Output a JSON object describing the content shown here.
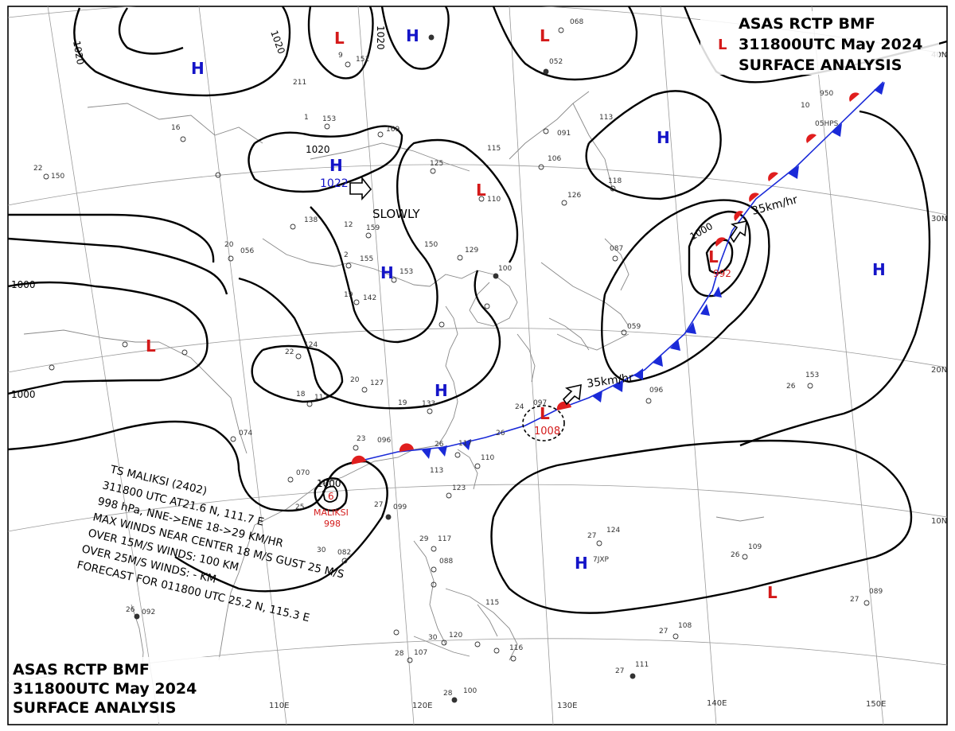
{
  "header_top": {
    "line1": "ASAS RCTP BMF",
    "line2": "311800UTC May 2024",
    "line3": "SURFACE ANALYSIS"
  },
  "header_bottom": {
    "line1": "ASAS RCTP BMF",
    "line2": "311800UTC May 2024",
    "line3": "SURFACE ANALYSIS"
  },
  "latitude_labels": [
    "40N",
    "30N",
    "20N",
    "10N"
  ],
  "longitude_labels": [
    "110E",
    "120E",
    "130E",
    "140E",
    "150E"
  ],
  "isobar_labels": {
    "north_left": "1020",
    "north_mid_a": "1020",
    "north_mid_b": "1020",
    "around_high": "1020",
    "west": "1000",
    "southwest": "1000",
    "japan_low": "1000",
    "malaksi": "1000"
  },
  "pressure_systems": {
    "highs": [
      {
        "id": "h-mongolia"
      },
      {
        "id": "h-north"
      },
      {
        "id": "h-1022",
        "value": "1022"
      },
      {
        "id": "h-yellowsea"
      },
      {
        "id": "h-eastchina"
      },
      {
        "id": "h-northeast"
      },
      {
        "id": "h-pacific-east"
      },
      {
        "id": "h-pacific"
      }
    ],
    "lows": [
      {
        "id": "l-north"
      },
      {
        "id": "l-northeast"
      },
      {
        "id": "l-central"
      },
      {
        "id": "l-west"
      },
      {
        "id": "l-japan",
        "value": "992"
      },
      {
        "id": "l-okinawa",
        "value": "1008"
      },
      {
        "id": "l-pacific"
      }
    ],
    "l_tag": "L"
  },
  "motion": {
    "slowly": "SLOWLY",
    "speed_japan": "35km/hr",
    "speed_okinawa": "35km/hr"
  },
  "typhoon": {
    "name_label": "MALIKSI",
    "pressure": "998",
    "bulletin": [
      "TS MALIKSI (2402)",
      "311800 UTC AT21.6 N, 111.7 E",
      "998 hPa, NNE->ENE 18->29 KM/HR",
      "MAX WINDS NEAR CENTER 18 M/S GUST 25 M/S",
      "OVER 15M/S WINDS: 100 KM",
      "OVER 25M/S WINDS: - KM",
      "FORECAST FOR 011800 UTC 25.2 N, 115.3 E"
    ]
  },
  "colors": {
    "high": "#1414c8",
    "low": "#d41a1a",
    "warm_front": "#e01e1e",
    "cold_front": "#1a2ad8",
    "isobar": "#000000",
    "coast": "#888888",
    "grid": "#9a9a9a"
  },
  "station_labels": [
    "9",
    "151",
    "211",
    "153",
    "169",
    "16",
    "22",
    "150",
    "1",
    "138",
    "159",
    "12",
    "155",
    "153",
    "056",
    "20",
    "142",
    "19",
    "124",
    "22",
    "18",
    "2",
    "117",
    "20",
    "127",
    "19",
    "133",
    "074",
    "23",
    "096",
    "26",
    "117",
    "24",
    "097",
    "26",
    "110",
    "113",
    "123",
    "27",
    "099",
    "25",
    "070",
    "29",
    "117",
    "088",
    "30",
    "082",
    "26",
    "092",
    "30",
    "120",
    "28",
    "107",
    "28",
    "100",
    "115",
    "116",
    "27",
    "124",
    "26",
    "109",
    "27",
    "089",
    "27",
    "108",
    "27",
    "111",
    "26",
    "153",
    "096",
    "059",
    "091",
    "106",
    "115",
    "126",
    "125",
    "110",
    "068",
    "052",
    "113",
    "118",
    "087",
    "100",
    "129",
    "150",
    "10",
    "950",
    "05HPS",
    "7JXP"
  ]
}
